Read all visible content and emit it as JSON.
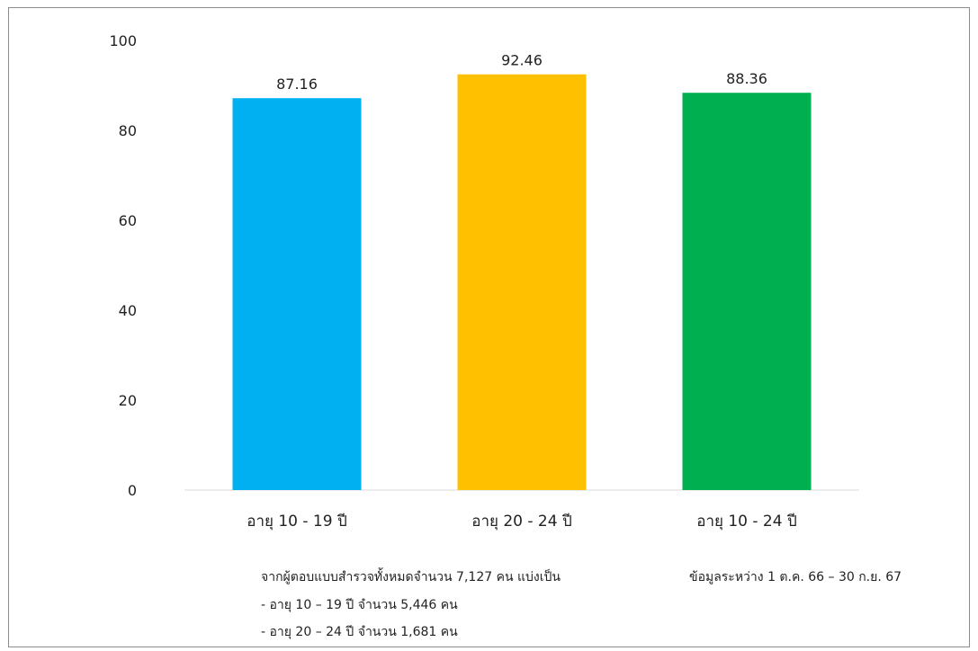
{
  "chart_data": {
    "type": "bar",
    "categories": [
      "อายุ 10 - 19 ปี",
      "อายุ 20 - 24 ปี",
      "อายุ 10 - 24 ปี"
    ],
    "values": [
      87.16,
      92.46,
      88.36
    ],
    "data_labels": [
      "87.16",
      "92.46",
      "88.36"
    ],
    "colors": [
      "#00b0f0",
      "#ffc000",
      "#00b050"
    ],
    "ylim": [
      0,
      100
    ],
    "yticks": [
      0,
      20,
      40,
      60,
      80,
      100
    ],
    "grid": false,
    "legend": "none"
  },
  "notes": {
    "summary": "จากผู้ตอบแบบสำรวจทั้งหมดจำนวน 7,127 คน แบ่งเป็น",
    "line1": "- อายุ 10 – 19 ปี จำนวน 5,446 คน",
    "line2": "- อายุ 20 – 24 ปี จำนวน 1,681 คน",
    "date_range": "ข้อมูลระหว่าง 1 ต.ค. 66 – 30 ก.ย. 67"
  }
}
